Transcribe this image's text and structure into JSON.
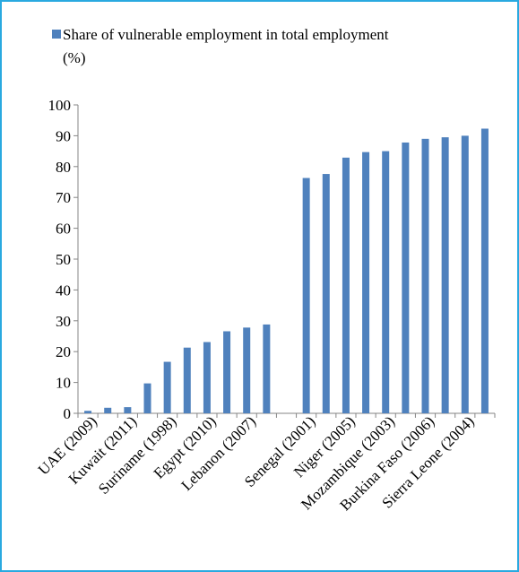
{
  "chart_data": {
    "type": "bar",
    "categories": [
      "UAE (2009)",
      "",
      "Kuwait (2011)",
      "",
      "Suriname (1998)",
      "",
      "Egypt (2010)",
      "",
      "Lebanon (2007)",
      "",
      "",
      "Senegal (2001)",
      "",
      "Niger (2005)",
      "",
      "Mozambique (2003)",
      "",
      "Burkina Faso (2006)",
      "",
      "Sierra Leone (2004)",
      ""
    ],
    "series": [
      {
        "name": "Share of vulnerable employment in total employment (%)",
        "values": [
          0.8,
          1.8,
          2.0,
          9.7,
          16.7,
          21.3,
          23.1,
          26.6,
          27.8,
          28.8,
          null,
          76.3,
          77.6,
          82.9,
          84.7,
          85.0,
          87.8,
          89.0,
          89.5,
          90.0,
          92.3
        ],
        "color": "#4F81BD"
      }
    ],
    "legend": {
      "position": "top",
      "label_lines": [
        "Share of vulnerable employment in total employment",
        "(%)"
      ]
    },
    "y_ticks": [
      "0",
      "10",
      "20",
      "30",
      "40",
      "50",
      "60",
      "70",
      "80",
      "90",
      "100"
    ],
    "ylim": [
      0,
      100
    ],
    "grid": false,
    "title": "",
    "xlabel": "",
    "ylabel": ""
  }
}
